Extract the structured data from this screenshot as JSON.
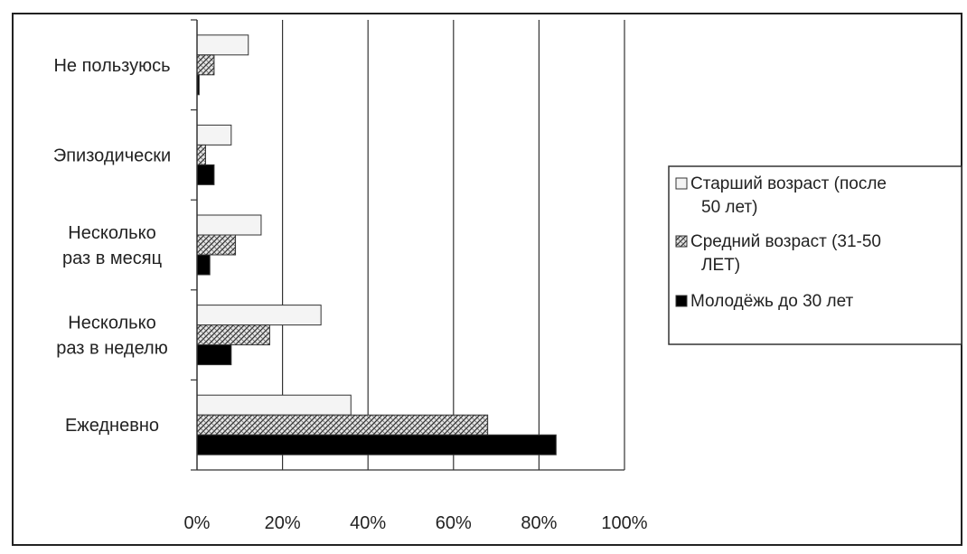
{
  "chart_data": {
    "type": "bar",
    "orientation": "horizontal",
    "categories": [
      [
        "Не пользуюсь"
      ],
      [
        "Эпизодически"
      ],
      [
        "Несколько",
        "раз в месяц"
      ],
      [
        "Несколько",
        "раз в неделю"
      ],
      [
        "Ежедневно"
      ]
    ],
    "series": [
      {
        "name": [
          "Старший возраст (после",
          "50 лет)"
        ],
        "values": [
          12,
          8,
          15,
          29,
          36
        ],
        "fill": "light",
        "color": "#f4f4f4"
      },
      {
        "name": [
          "Средний возраст (31-50",
          "ЛЕТ)"
        ],
        "values": [
          4,
          2,
          9,
          17,
          68
        ],
        "fill": "hatched",
        "color": "#777777"
      },
      {
        "name": [
          "Молодёжь до 30 лет"
        ],
        "values": [
          0.5,
          4,
          3,
          8,
          84
        ],
        "fill": "solid",
        "color": "#000000"
      }
    ],
    "xlim": [
      0,
      100
    ],
    "x_ticks": [
      "0%",
      "20%",
      "40%",
      "60%",
      "80%",
      "100%"
    ],
    "grid": true,
    "legend_position": "right"
  }
}
